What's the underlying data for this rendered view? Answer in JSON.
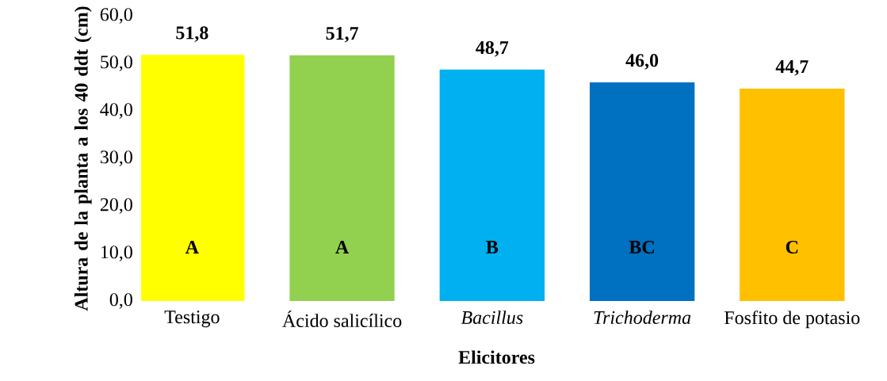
{
  "chart_data": {
    "type": "bar",
    "xlabel": "Elicitores",
    "ylabel": "Altura de la planta a los 40 ddt (cm)",
    "categories": [
      "Testigo",
      "Ácido salicílico",
      "*Bacillus*",
      "*Trichoderma*",
      "Fosfito de potasio"
    ],
    "values": [
      51.8,
      51.7,
      48.7,
      46.0,
      44.7
    ],
    "colors": [
      "#ffff00",
      "#92d050",
      "#00b0f0",
      "#0070c0",
      "#ffc000"
    ],
    "value_labels": [
      "51,8",
      "51,7",
      "48,7",
      "46,0",
      "44,7"
    ],
    "ylim": [
      0,
      60
    ],
    "yticks": [
      {
        "value": 0,
        "label": "0,0"
      },
      {
        "value": 10,
        "label": "10,0"
      },
      {
        "value": 20,
        "label": "20,0"
      },
      {
        "value": 30,
        "label": "30,0"
      },
      {
        "value": 40,
        "label": "40,0"
      },
      {
        "value": 50,
        "label": "50,0"
      },
      {
        "value": 60,
        "label": "60,0"
      }
    ],
    "annotations": [
      "A",
      "A",
      "B",
      "BC",
      "C"
    ],
    "grid": false
  }
}
